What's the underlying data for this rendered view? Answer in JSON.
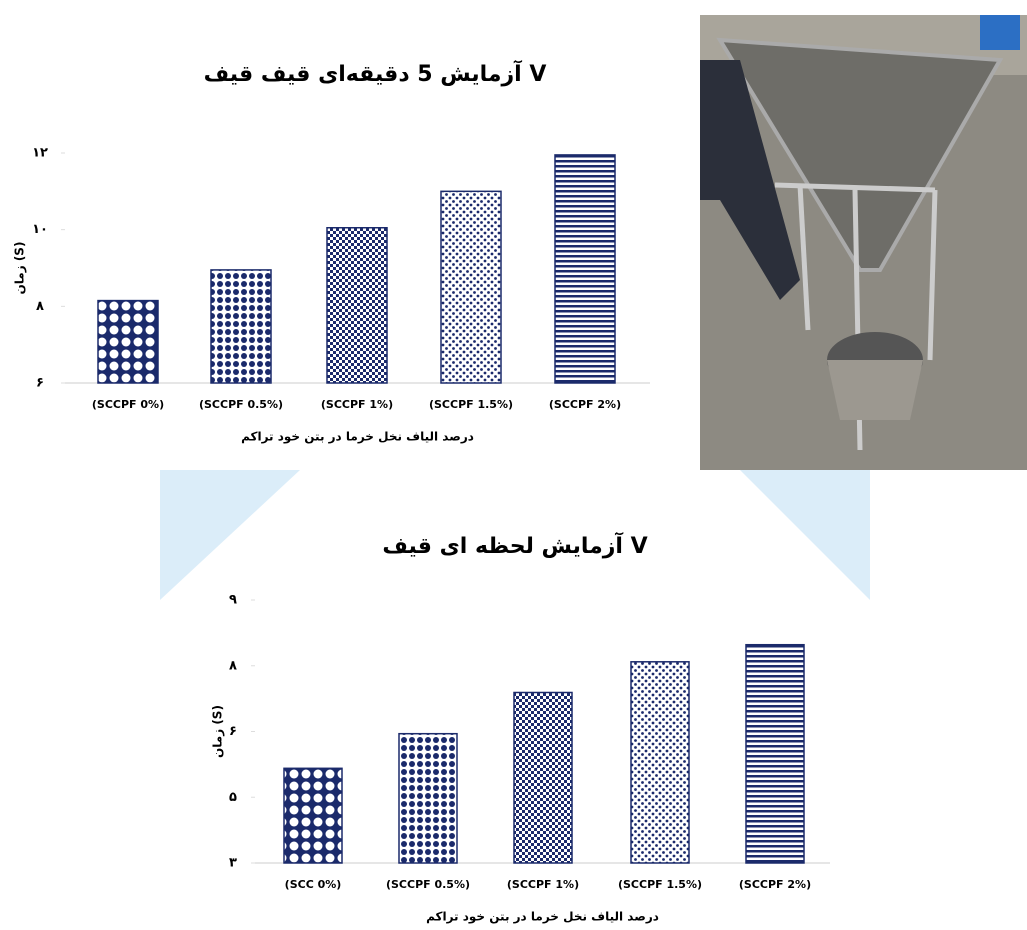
{
  "chart_data": [
    {
      "type": "bar",
      "title": "آزمایش 5 دقیقه‌ای قیف قیف V",
      "y_label": "زمان (S)",
      "x_label": "درصد الیاف نخل خرما در بتن خود تراکم",
      "categories": [
        "(SCCPF 0%)",
        "(SCCPF 0.5%)",
        "(SCCPF 1%)",
        "(SCCPF 1.5%)",
        "(SCCPF 2%)"
      ],
      "values": [
        8.15,
        8.95,
        10.05,
        11,
        11.95
      ],
      "color": "#1b2a6b",
      "ylim": [
        6,
        12
      ],
      "yticks": [
        {
          "value": 6,
          "label": "۶"
        },
        {
          "value": 8,
          "label": "۸"
        },
        {
          "value": 10,
          "label": "۱۰"
        },
        {
          "value": 12,
          "label": "۱۲"
        }
      ]
    },
    {
      "type": "bar",
      "title": "آزمایش لحظه ای قیف V",
      "y_label": "زمان (S)",
      "x_label": "درصد الیاف نخل خرما در بتن خود تراکم",
      "categories": [
        "(SCC 0%)",
        "(SCCPF 0.5%)",
        "(SCCPF 1%)",
        "(SCCPF 1.5%)",
        "(SCCPF 2%)"
      ],
      "values": [
        5.16,
        5.95,
        6.89,
        7.59,
        7.98
      ],
      "color": "#1b2a6b",
      "ylim": [
        3,
        9
      ],
      "yticks": [
        {
          "value": 3,
          "label": "۳"
        },
        {
          "value": 4.5,
          "label": "۵"
        },
        {
          "value": 6,
          "label": "۶"
        },
        {
          "value": 7.5,
          "label": "۸"
        },
        {
          "value": 9,
          "label": "۹"
        }
      ]
    }
  ]
}
